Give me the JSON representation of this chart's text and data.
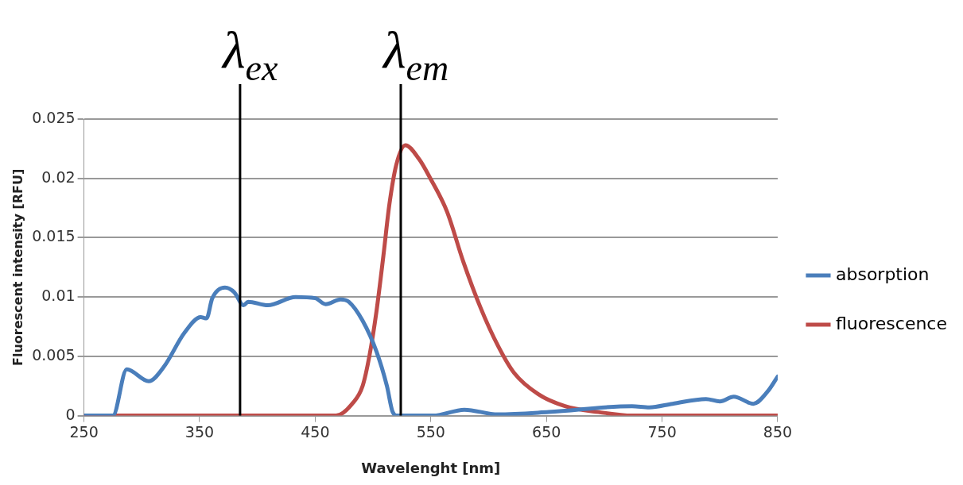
{
  "chart_data": {
    "type": "line",
    "xlabel": "Wavelenght [nm]",
    "ylabel": "Fluorescent intensity [RFU]",
    "xlim": [
      250,
      850
    ],
    "xticks": [
      250,
      350,
      450,
      550,
      650,
      750,
      850
    ],
    "ylim": [
      0,
      0.025
    ],
    "yticks": [
      0,
      0.005,
      0.01,
      0.015,
      0.02,
      0.025
    ],
    "grid": "y",
    "legend": "right",
    "marker": "none",
    "line_style": "solid",
    "series": [
      {
        "name": "absorption",
        "color": "#4a7ebb",
        "x": [
          250,
          275,
          287,
          306,
          319,
          337,
          351,
          356,
          361,
          372,
          380,
          388,
          392,
          409,
          433,
          450,
          459,
          472,
          479,
          491,
          503,
          512,
          517,
          521,
          552,
          579,
          608,
          652,
          724,
          739,
          759,
          788,
          800,
          812,
          829,
          841,
          850
        ],
        "values": [
          0,
          0,
          0.0039,
          0.0029,
          0.0041,
          0.007,
          0.0083,
          0.0082,
          0.0099,
          0.0108,
          0.0104,
          0.0093,
          0.0096,
          0.0093,
          0.01,
          0.0099,
          0.0094,
          0.0098,
          0.0096,
          0.008,
          0.0054,
          0.0025,
          0.0003,
          0,
          0,
          0.0005,
          0.0001,
          0.0003,
          0.0008,
          0.0007,
          0.001,
          0.0014,
          0.0012,
          0.0016,
          0.001,
          0.002,
          0.0033
        ]
      },
      {
        "name": "fluorescence",
        "color": "#be4b48",
        "x": [
          250,
          468,
          482,
          491,
          497,
          503,
          509,
          514,
          520,
          528,
          540,
          549,
          564,
          578,
          593,
          608,
          622,
          643,
          666,
          695,
          724,
          850
        ],
        "values": [
          0,
          0,
          0.001,
          0.0025,
          0.0051,
          0.0088,
          0.0135,
          0.0177,
          0.0211,
          0.0228,
          0.0216,
          0.0201,
          0.0172,
          0.013,
          0.0091,
          0.0059,
          0.0036,
          0.0018,
          0.0008,
          0.0003,
          0,
          0
        ]
      }
    ],
    "ref_lines": [
      {
        "axis": "x",
        "value": 385,
        "label": "λ$_{ex}$",
        "color": "#000000"
      },
      {
        "axis": "x",
        "value": 524,
        "label": "λ$_{em}$",
        "color": "#000000"
      }
    ]
  }
}
